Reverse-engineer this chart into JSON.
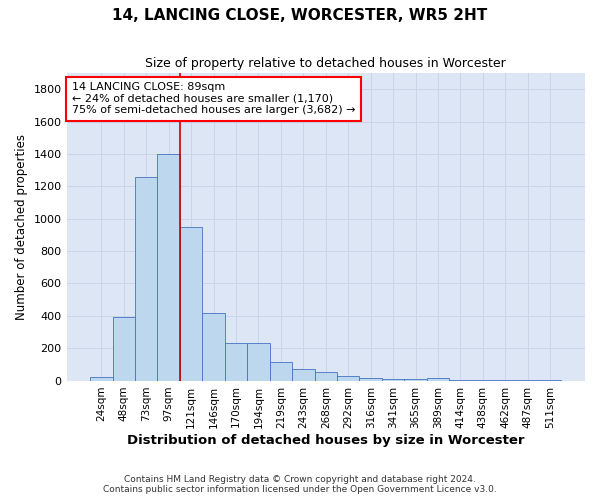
{
  "title": "14, LANCING CLOSE, WORCESTER, WR5 2HT",
  "subtitle": "Size of property relative to detached houses in Worcester",
  "xlabel": "Distribution of detached houses by size in Worcester",
  "ylabel": "Number of detached properties",
  "footer_line1": "Contains HM Land Registry data © Crown copyright and database right 2024.",
  "footer_line2": "Contains public sector information licensed under the Open Government Licence v3.0.",
  "categories": [
    "24sqm",
    "48sqm",
    "73sqm",
    "97sqm",
    "121sqm",
    "146sqm",
    "170sqm",
    "194sqm",
    "219sqm",
    "243sqm",
    "268sqm",
    "292sqm",
    "316sqm",
    "341sqm",
    "365sqm",
    "389sqm",
    "414sqm",
    "438sqm",
    "462sqm",
    "487sqm",
    "511sqm"
  ],
  "values": [
    25,
    390,
    1260,
    1400,
    950,
    415,
    235,
    235,
    115,
    70,
    50,
    30,
    15,
    10,
    8,
    15,
    5,
    5,
    3,
    3,
    3
  ],
  "bar_color": "#bdd7ee",
  "bar_edge_color": "#4472c4",
  "ylim": [
    0,
    1900
  ],
  "yticks": [
    0,
    200,
    400,
    600,
    800,
    1000,
    1200,
    1400,
    1600,
    1800
  ],
  "vline_x": 3.5,
  "vline_color": "#cc0000",
  "ann_text_line1": "14 LANCING CLOSE: 89sqm",
  "ann_text_line2": "← 24% of detached houses are smaller (1,170)",
  "ann_text_line3": "75% of semi-detached houses are larger (3,682) →",
  "background_color": "#ffffff",
  "grid_color": "#c8d4e8",
  "plot_bg_color": "#dce6f5"
}
